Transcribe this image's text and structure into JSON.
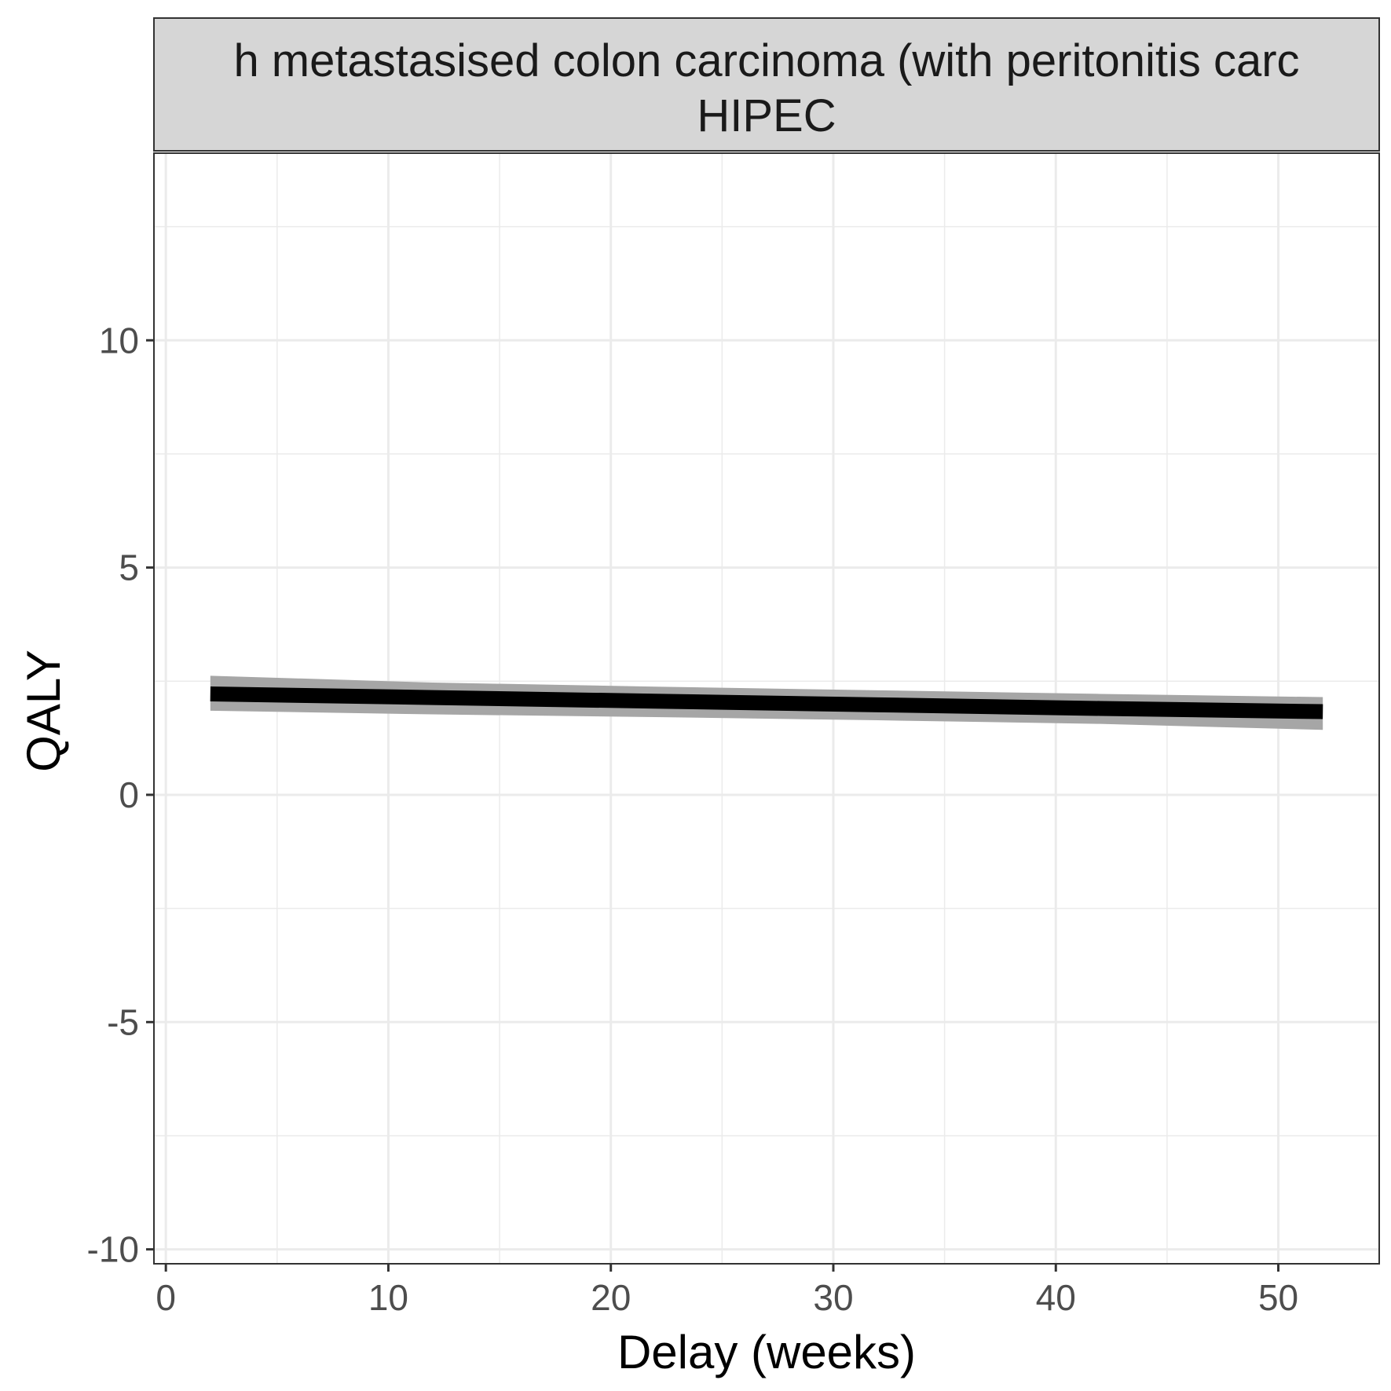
{
  "chart_data": {
    "type": "line",
    "facet_strip": {
      "line1": "h metastasised colon carcinoma (with peritonitis carc",
      "line2": "HIPEC"
    },
    "xlabel": "Delay (weeks)",
    "ylabel": "QALY",
    "xlim": [
      -0.5,
      54.5
    ],
    "ylim": [
      -10.3,
      14.1
    ],
    "x_ticks": [
      0,
      10,
      20,
      30,
      40,
      50
    ],
    "x_tick_labels": [
      "0",
      "10",
      "20",
      "30",
      "40",
      "50"
    ],
    "y_ticks": [
      -10,
      -5,
      0,
      5,
      10
    ],
    "y_tick_labels": [
      "-10",
      "-5",
      "0",
      "5",
      "10"
    ],
    "x_minor_grid": [
      5,
      15,
      25,
      35,
      45
    ],
    "y_minor_grid": [
      -7.5,
      -2.5,
      2.5,
      7.5,
      12.5
    ],
    "grid": true,
    "series": [
      {
        "x": [
          2,
          12,
          22,
          32,
          42,
          52
        ],
        "y": [
          2.22,
          2.14,
          2.06,
          1.98,
          1.9,
          1.83
        ],
        "y_lower": [
          1.85,
          1.77,
          1.71,
          1.64,
          1.56,
          1.43
        ],
        "y_upper": [
          2.62,
          2.47,
          2.38,
          2.3,
          2.22,
          2.15
        ]
      }
    ],
    "colors": {
      "line": "#000000",
      "ribbon": "#a6a6a6",
      "grid": "#ebebeb",
      "strip_fill": "#d6d6d6",
      "panel_border": "#333333"
    }
  }
}
